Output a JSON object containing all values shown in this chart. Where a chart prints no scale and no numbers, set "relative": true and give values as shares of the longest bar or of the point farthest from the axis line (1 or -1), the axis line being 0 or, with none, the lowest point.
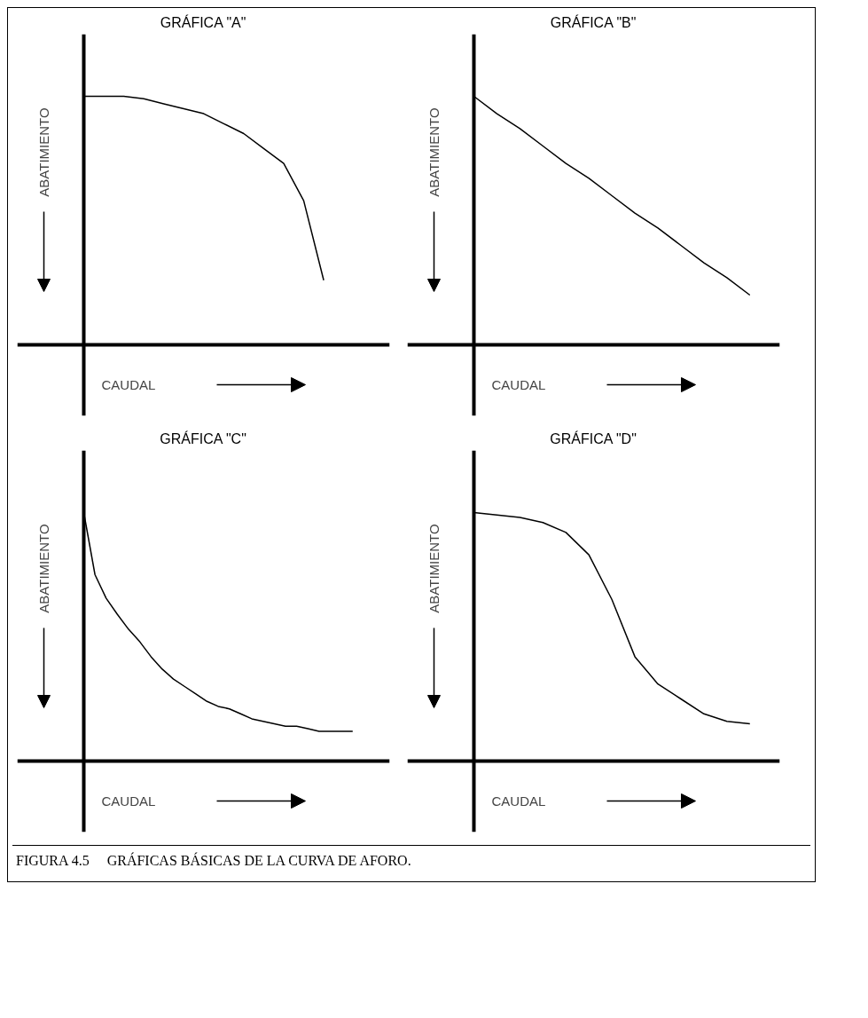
{
  "chart_data": [
    {
      "type": "line",
      "title": "GRÁFICA \"A\"",
      "xlabel": "CAUDAL",
      "ylabel": "ABATIMIENTO",
      "relative": true,
      "categories": [
        null,
        null,
        null,
        null,
        null,
        null,
        null,
        null,
        null,
        null,
        null,
        null,
        null,
        null,
        null,
        null
      ],
      "series": [
        {
          "color": "#000000",
          "values": [
            1.0,
            1.0,
            1.0,
            0.99,
            0.97,
            0.95,
            0.93,
            0.89,
            0.85,
            0.79,
            0.73,
            0.58,
            0.26,
            null,
            null,
            null
          ]
        }
      ]
    },
    {
      "type": "line",
      "title": "GRÁFICA \"B\"",
      "xlabel": "CAUDAL",
      "ylabel": "ABATIMIENTO",
      "relative": true,
      "categories": [
        null,
        null,
        null,
        null,
        null,
        null,
        null,
        null,
        null,
        null,
        null,
        null,
        null,
        null
      ],
      "series": [
        {
          "color": "#000000",
          "values": [
            1.0,
            0.93,
            0.87,
            0.8,
            0.73,
            0.67,
            0.6,
            0.53,
            0.47,
            0.4,
            0.33,
            0.27,
            0.2,
            null
          ]
        }
      ]
    },
    {
      "type": "line",
      "title": "GRÁFICA \"C\"",
      "xlabel": "CAUDAL",
      "ylabel": "ABATIMIENTO",
      "relative": true,
      "categories": [
        null,
        null,
        null,
        null,
        null,
        null,
        null,
        null,
        null,
        null,
        null,
        null,
        null,
        null,
        null,
        null,
        null,
        null,
        null,
        null,
        null,
        null,
        null,
        null,
        null,
        null,
        null,
        null
      ],
      "series": [
        {
          "color": "#000000",
          "values": [
            1.0,
            0.75,
            0.655,
            0.59,
            0.53,
            0.48,
            0.42,
            0.37,
            0.33,
            0.3,
            0.27,
            0.24,
            0.22,
            0.21,
            0.19,
            0.17,
            0.16,
            0.15,
            0.14,
            0.14,
            0.13,
            0.12,
            0.12,
            0.12,
            0.12,
            null,
            null,
            null
          ]
        }
      ]
    },
    {
      "type": "line",
      "title": "GRÁFICA \"D\"",
      "xlabel": "CAUDAL",
      "ylabel": "ABATIMIENTO",
      "relative": true,
      "annotations": [
        "FIGURA 4.5     GRÁFICAS BÁSICAS DE LA CURVA DE AFORO."
      ],
      "categories": [
        null,
        null,
        null,
        null,
        null,
        null,
        null,
        null,
        null,
        null,
        null,
        null,
        null,
        null
      ],
      "series": [
        {
          "color": "#000000",
          "values": [
            1.0,
            0.99,
            0.98,
            0.96,
            0.92,
            0.83,
            0.65,
            0.42,
            0.31,
            0.25,
            0.19,
            0.16,
            0.15,
            null
          ]
        }
      ]
    }
  ]
}
